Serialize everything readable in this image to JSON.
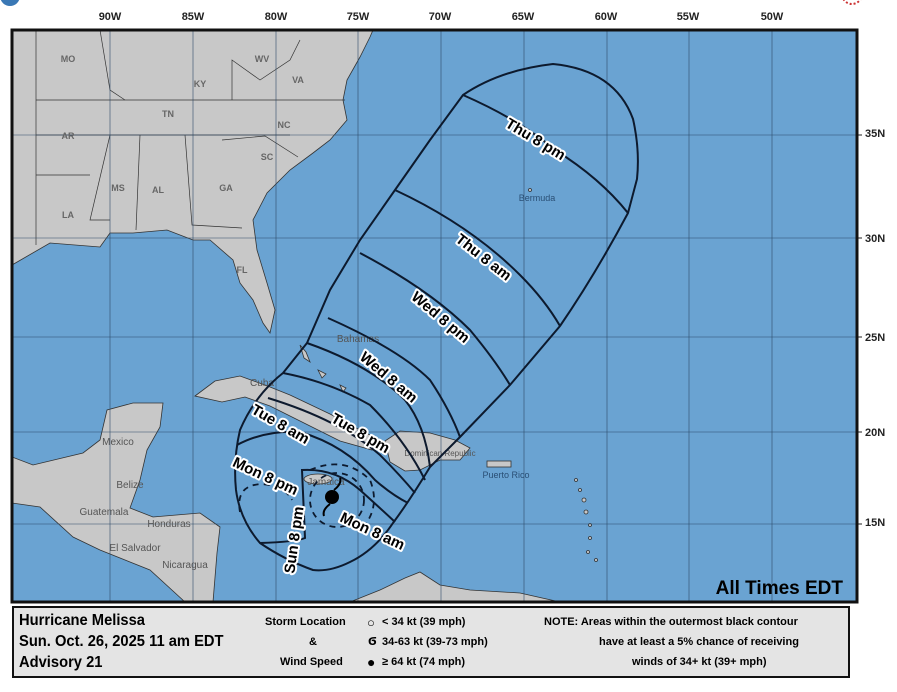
{
  "map": {
    "colors": {
      "ocean": "#6aa3d2",
      "land": "#c8c8c8",
      "contour": "#0d1a2e",
      "grid": "#2d4a68"
    },
    "longitude_labels": [
      "90W",
      "85W",
      "80W",
      "75W",
      "70W",
      "65W",
      "60W",
      "55W",
      "50W"
    ],
    "latitude_labels": [
      "35N",
      "30N",
      "25N",
      "20N",
      "15N"
    ],
    "state_labels": [
      "MO",
      "KY",
      "WV",
      "VA",
      "TN",
      "NC",
      "AR",
      "SC",
      "MS",
      "AL",
      "GA",
      "LA",
      "FL"
    ],
    "country_labels": [
      "Mexico",
      "Belize",
      "Guatemala",
      "Honduras",
      "El Salvador",
      "Nicaragua",
      "Cuba",
      "Bahamas",
      "Jamaica",
      "Dominican Republic",
      "Puerto Rico",
      "Bermuda"
    ],
    "time_labels": [
      "Thu 8 pm",
      "Thu 8 am",
      "Wed 8 pm",
      "Wed 8 am",
      "Tue 8 pm",
      "Tue 8 am",
      "Mon 8 pm",
      "Mon 8 am",
      "Sun 8 pm"
    ],
    "all_times": "All Times EDT",
    "storm_icon": "major-hurricane-symbol"
  },
  "legend": {
    "storm_name": "Hurricane Melissa",
    "issued": "Sun. Oct. 26, 2025  11 am EDT",
    "advisory": "Advisory 21",
    "key_title_1": "Storm Location",
    "key_title_2": "&",
    "key_title_3": "Wind Speed",
    "key_items": [
      {
        "icon": "open-circle-icon",
        "label": "< 34 kt (39 mph)"
      },
      {
        "icon": "tropical-storm-icon",
        "label": "34-63 kt (39-73 mph)"
      },
      {
        "icon": "hurricane-icon",
        "label": "≥ 64 kt (74 mph)"
      }
    ],
    "note_1": "NOTE: Areas within the outermost black contour",
    "note_2": "have at least a 5% chance of receiving",
    "note_3": "winds of 34+ kt (39+ mph)"
  }
}
